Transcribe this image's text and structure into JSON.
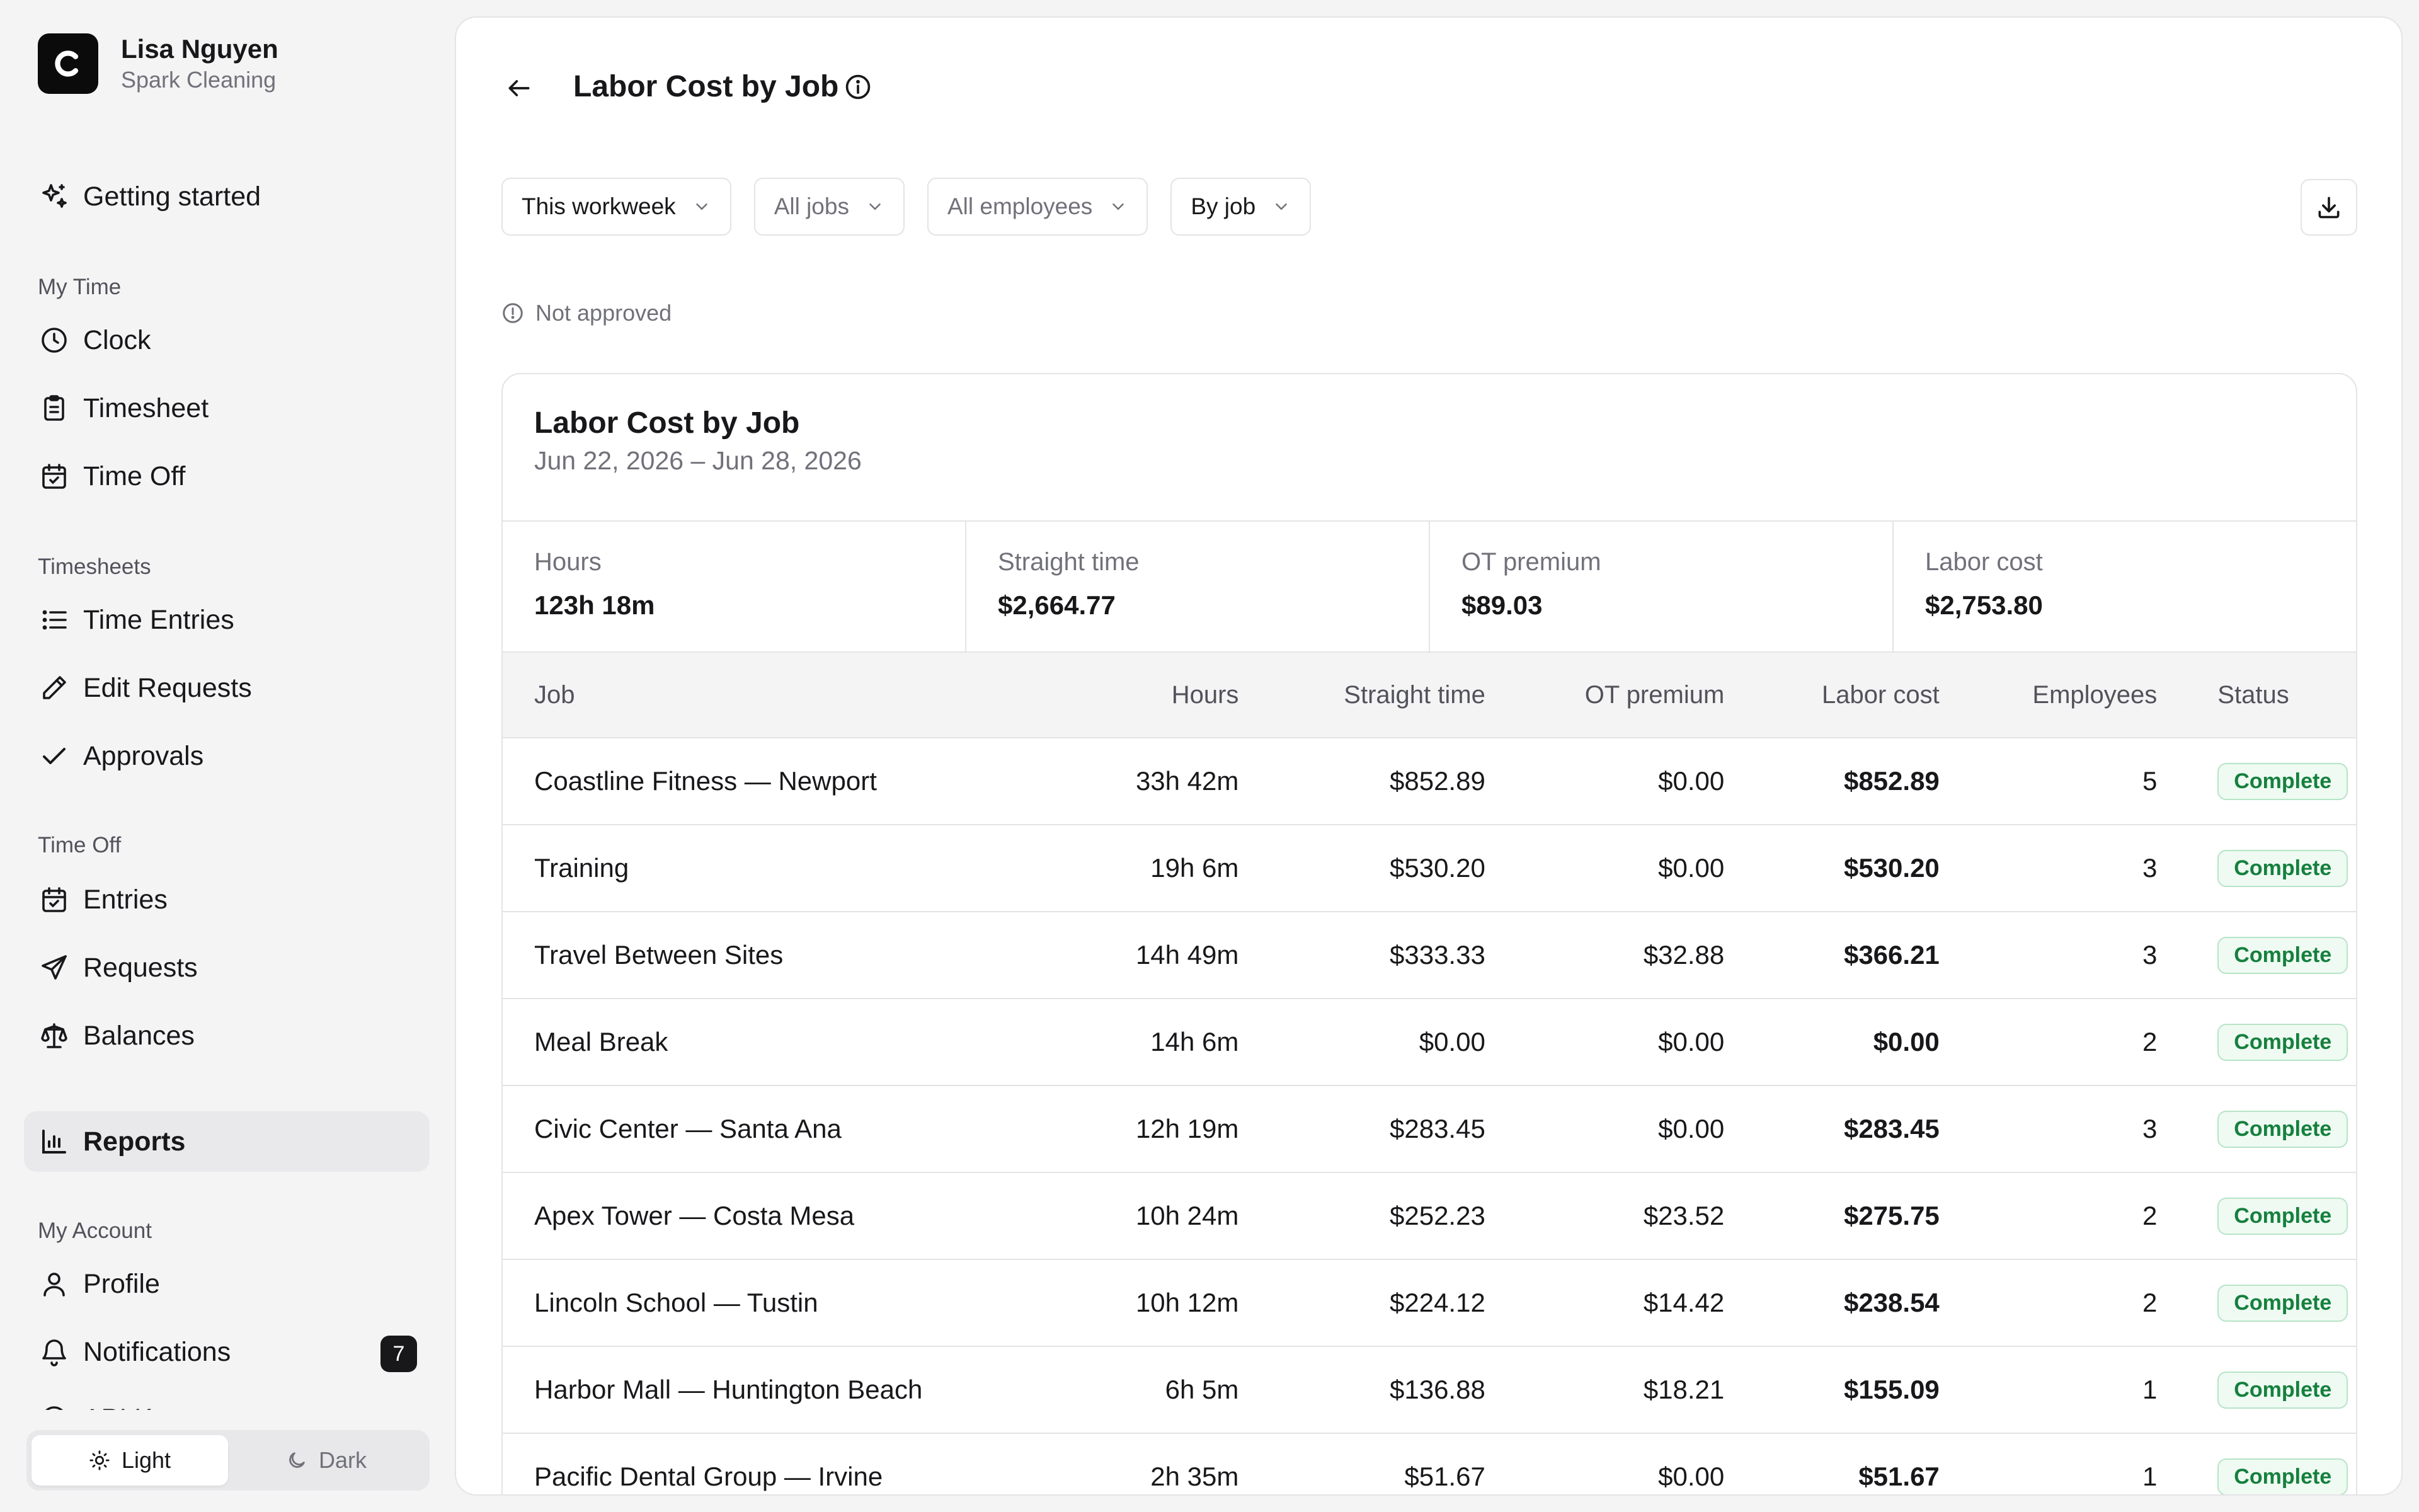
{
  "user": {
    "name": "Lisa Nguyen",
    "org": "Spark Cleaning"
  },
  "nav": {
    "getting_started": "Getting started",
    "sections": {
      "my_time": "My Time",
      "timesheets": "Timesheets",
      "time_off": "Time Off",
      "my_account": "My Account"
    },
    "items": {
      "clock": "Clock",
      "timesheet": "Timesheet",
      "time_off": "Time Off",
      "time_entries": "Time Entries",
      "edit_requests": "Edit Requests",
      "approvals": "Approvals",
      "entries": "Entries",
      "requests": "Requests",
      "balances": "Balances",
      "reports": "Reports",
      "profile": "Profile",
      "notifications": "Notifications",
      "notifications_count": "7",
      "clipped": "API Keys"
    }
  },
  "theme": {
    "light": "Light",
    "dark": "Dark",
    "selected": "Light"
  },
  "page": {
    "title": "Labor Cost by Job",
    "filters": {
      "period": "This workweek",
      "jobs": "All jobs",
      "employees": "All employees",
      "group": "By job"
    },
    "status_note": "Not approved"
  },
  "report": {
    "title": "Labor Cost by Job",
    "range": "Jun 22, 2026 – Jun 28, 2026",
    "summary": [
      {
        "label": "Hours",
        "value": "123h 18m"
      },
      {
        "label": "Straight time",
        "value": "$2,664.77"
      },
      {
        "label": "OT premium",
        "value": "$89.03"
      },
      {
        "label": "Labor cost",
        "value": "$2,753.80"
      }
    ],
    "columns": [
      "Job",
      "Hours",
      "Straight time",
      "OT premium",
      "Labor cost",
      "Employees",
      "Status"
    ],
    "rows": [
      {
        "job": "Coastline Fitness — Newport",
        "hours": "33h 42m",
        "straight": "$852.89",
        "ot": "$0.00",
        "labor": "$852.89",
        "employees": "5",
        "status": "Complete"
      },
      {
        "job": "Training",
        "hours": "19h 6m",
        "straight": "$530.20",
        "ot": "$0.00",
        "labor": "$530.20",
        "employees": "3",
        "status": "Complete"
      },
      {
        "job": "Travel Between Sites",
        "hours": "14h 49m",
        "straight": "$333.33",
        "ot": "$32.88",
        "labor": "$366.21",
        "employees": "3",
        "status": "Complete"
      },
      {
        "job": "Meal Break",
        "hours": "14h 6m",
        "straight": "$0.00",
        "ot": "$0.00",
        "labor": "$0.00",
        "employees": "2",
        "status": "Complete"
      },
      {
        "job": "Civic Center — Santa Ana",
        "hours": "12h 19m",
        "straight": "$283.45",
        "ot": "$0.00",
        "labor": "$283.45",
        "employees": "3",
        "status": "Complete"
      },
      {
        "job": "Apex Tower — Costa Mesa",
        "hours": "10h 24m",
        "straight": "$252.23",
        "ot": "$23.52",
        "labor": "$275.75",
        "employees": "2",
        "status": "Complete"
      },
      {
        "job": "Lincoln School — Tustin",
        "hours": "10h 12m",
        "straight": "$224.12",
        "ot": "$14.42",
        "labor": "$238.54",
        "employees": "2",
        "status": "Complete"
      },
      {
        "job": "Harbor Mall — Huntington Beach",
        "hours": "6h 5m",
        "straight": "$136.88",
        "ot": "$18.21",
        "labor": "$155.09",
        "employees": "1",
        "status": "Complete"
      },
      {
        "job": "Pacific Dental Group — Irvine",
        "hours": "2h 35m",
        "straight": "$51.67",
        "ot": "$0.00",
        "labor": "$51.67",
        "employees": "1",
        "status": "Complete"
      }
    ]
  },
  "colors": {
    "accent": "#18181b",
    "success": "#15803d",
    "success_bg": "#effaf3",
    "muted": "#71717a"
  }
}
